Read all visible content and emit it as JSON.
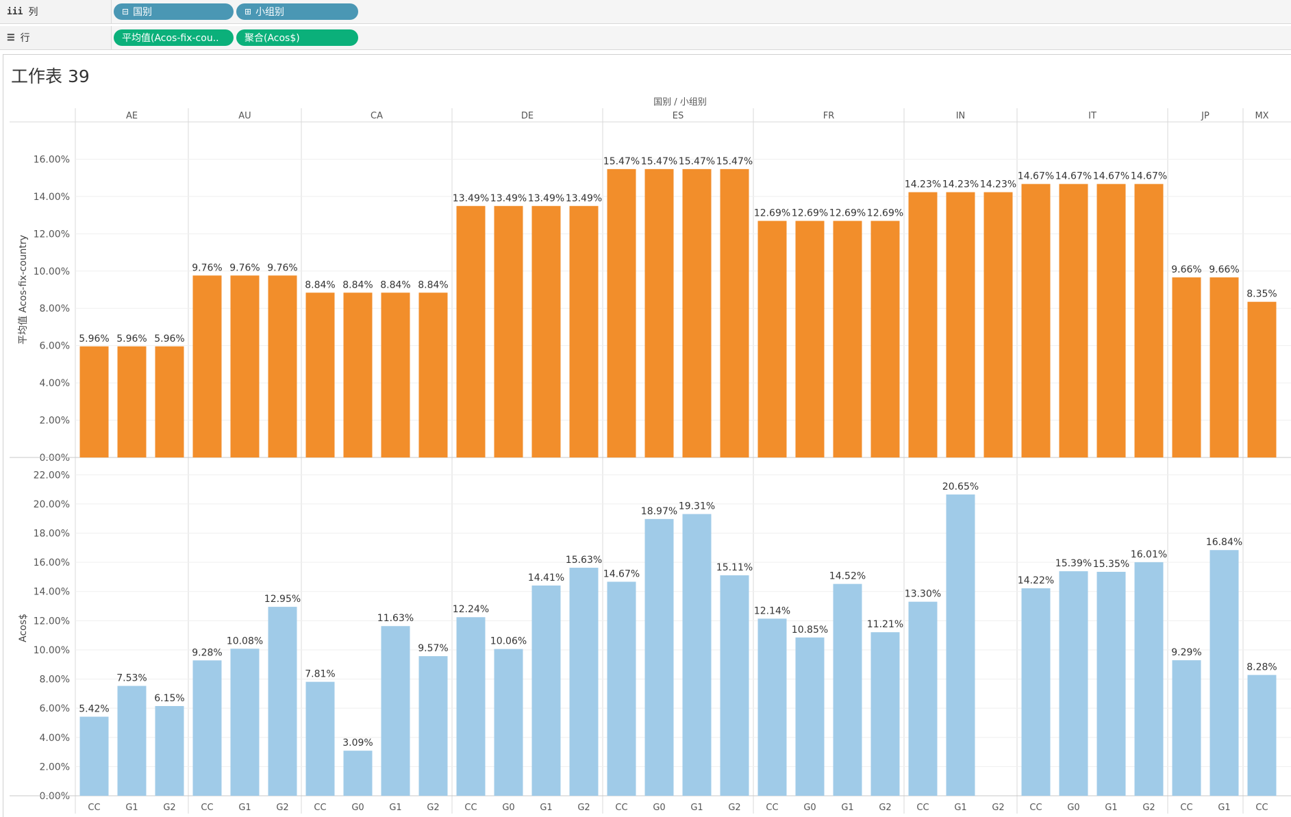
{
  "shelves": {
    "columns": {
      "glyph": "iii",
      "label": "列",
      "pills": [
        {
          "glyph": "⊟",
          "text": "国别",
          "kind": "dimension"
        },
        {
          "glyph": "⊞",
          "text": "小组别",
          "kind": "dimension"
        }
      ]
    },
    "rows": {
      "glyph": "☰",
      "label": "行",
      "pills": [
        {
          "text": "平均值(Acos-fix-cou..",
          "kind": "measure"
        },
        {
          "text": "聚合(Acos$)",
          "kind": "measure"
        }
      ]
    }
  },
  "sheet": {
    "title": "工作表 39"
  },
  "colors": {
    "top_bars": "#f28e2b",
    "bottom_bars": "#a0cbe8",
    "pill_dimension": "#4a97b4",
    "pill_measure": "#0bb07a"
  },
  "chart_data": {
    "type": "bar",
    "header_title": "国别 / 小组别",
    "countries": [
      {
        "name": "AE",
        "groups": [
          "CC",
          "G1",
          "G2"
        ]
      },
      {
        "name": "AU",
        "groups": [
          "CC",
          "G1",
          "G2"
        ]
      },
      {
        "name": "CA",
        "groups": [
          "CC",
          "G0",
          "G1",
          "G2"
        ]
      },
      {
        "name": "DE",
        "groups": [
          "CC",
          "G0",
          "G1",
          "G2"
        ]
      },
      {
        "name": "ES",
        "groups": [
          "CC",
          "G0",
          "G1",
          "G2"
        ]
      },
      {
        "name": "FR",
        "groups": [
          "CC",
          "G0",
          "G1",
          "G2"
        ]
      },
      {
        "name": "IN",
        "groups": [
          "CC",
          "G1",
          "G2"
        ]
      },
      {
        "name": "IT",
        "groups": [
          "CC",
          "G0",
          "G1",
          "G2"
        ]
      },
      {
        "name": "JP",
        "groups": [
          "CC",
          "G1"
        ]
      },
      {
        "name": "MX",
        "groups": [
          "CC"
        ]
      }
    ],
    "series": [
      {
        "name": "平均值 Acos-fix-country",
        "axis_title": "平均值 Acos-fix-country",
        "ylim": [
          0,
          18
        ],
        "ticks": [
          0,
          2,
          4,
          6,
          8,
          10,
          12,
          14,
          16
        ],
        "tick_labels": [
          "0.00%",
          "2.00%",
          "4.00%",
          "6.00%",
          "8.00%",
          "10.00%",
          "12.00%",
          "14.00%",
          "16.00%"
        ],
        "values": [
          5.96,
          5.96,
          5.96,
          9.76,
          9.76,
          9.76,
          8.84,
          8.84,
          8.84,
          8.84,
          13.49,
          13.49,
          13.49,
          13.49,
          15.47,
          15.47,
          15.47,
          15.47,
          12.69,
          12.69,
          12.69,
          12.69,
          14.23,
          14.23,
          14.23,
          14.67,
          14.67,
          14.67,
          14.67,
          9.66,
          9.66,
          8.35
        ],
        "labels": [
          "5.96%",
          "5.96%",
          "5.96%",
          "9.76%",
          "9.76%",
          "9.76%",
          "8.84%",
          "8.84%",
          "8.84%",
          "8.84%",
          "13.49%",
          "13.49%",
          "13.49%",
          "13.49%",
          "15.47%",
          "15.47%",
          "15.47%",
          "15.47%",
          "12.69%",
          "12.69%",
          "12.69%",
          "12.69%",
          "14.23%",
          "14.23%",
          "14.23%",
          "14.67%",
          "14.67%",
          "14.67%",
          "14.67%",
          "9.66%",
          "9.66%",
          "8.35%"
        ]
      },
      {
        "name": "Acos$",
        "axis_title": "Acos$",
        "ylim": [
          0,
          23
        ],
        "ticks": [
          0,
          2,
          4,
          6,
          8,
          10,
          12,
          14,
          16,
          18,
          20,
          22
        ],
        "tick_labels": [
          "0.00%",
          "2.00%",
          "4.00%",
          "6.00%",
          "8.00%",
          "10.00%",
          "12.00%",
          "14.00%",
          "16.00%",
          "18.00%",
          "20.00%",
          "22.00%"
        ],
        "values": [
          5.42,
          7.53,
          6.15,
          9.28,
          10.08,
          12.95,
          7.81,
          3.09,
          11.63,
          9.57,
          12.24,
          10.06,
          14.41,
          15.63,
          14.67,
          18.97,
          19.31,
          15.11,
          12.14,
          10.85,
          14.52,
          11.21,
          13.3,
          20.65,
          null,
          14.22,
          15.39,
          15.35,
          16.01,
          9.29,
          16.84,
          8.28
        ],
        "labels": [
          "5.42%",
          "7.53%",
          "6.15%",
          "9.28%",
          "10.08%",
          "12.95%",
          "7.81%",
          "3.09%",
          "11.63%",
          "9.57%",
          "12.24%",
          "10.06%",
          "14.41%",
          "15.63%",
          "14.67%",
          "18.97%",
          "19.31%",
          "15.11%",
          "12.14%",
          "10.85%",
          "14.52%",
          "11.21%",
          "13.30%",
          "20.65%",
          "",
          "14.22%",
          "15.39%",
          "15.35%",
          "16.01%",
          "9.29%",
          "16.84%",
          "8.28%"
        ]
      }
    ]
  }
}
